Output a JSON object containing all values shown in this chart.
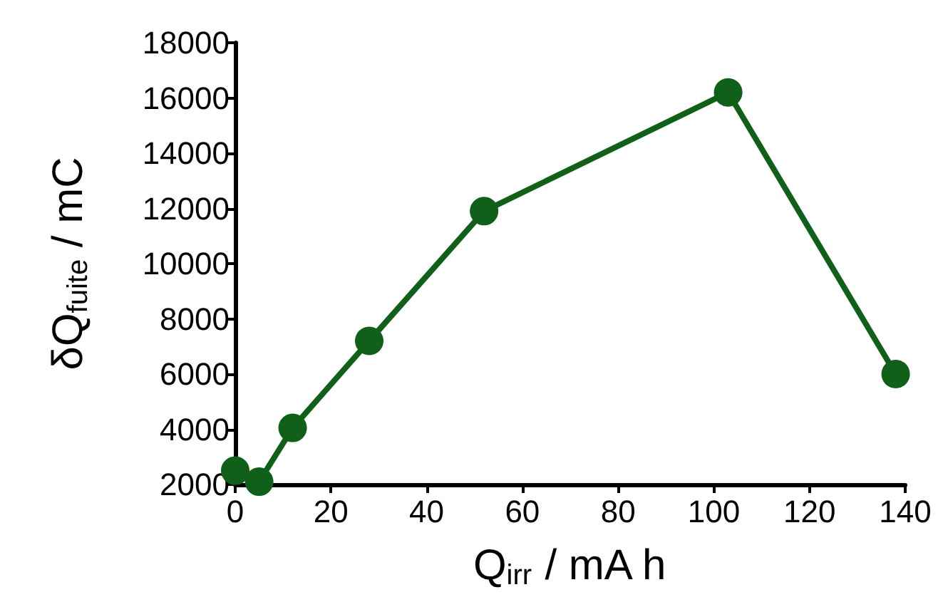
{
  "chart_data": {
    "type": "line",
    "xlabel": "Q$_{irr}$ / mA h",
    "ylabel": "δQ$_{fuite}$ / mC",
    "x": [
      0,
      5,
      12,
      28,
      52,
      103,
      138
    ],
    "series": [
      {
        "color": "#11601a",
        "values": [
          2500,
          2100,
          4050,
          7200,
          11900,
          16200,
          6000
        ]
      }
    ],
    "xlim": [
      0,
      140
    ],
    "xticks": [
      0,
      20,
      40,
      60,
      80,
      100,
      120,
      140
    ],
    "ylim": [
      2000,
      18000
    ],
    "yticks": [
      2000,
      4000,
      6000,
      8000,
      10000,
      12000,
      14000,
      16000,
      18000
    ],
    "marker": "circle",
    "line_style": "solid"
  }
}
